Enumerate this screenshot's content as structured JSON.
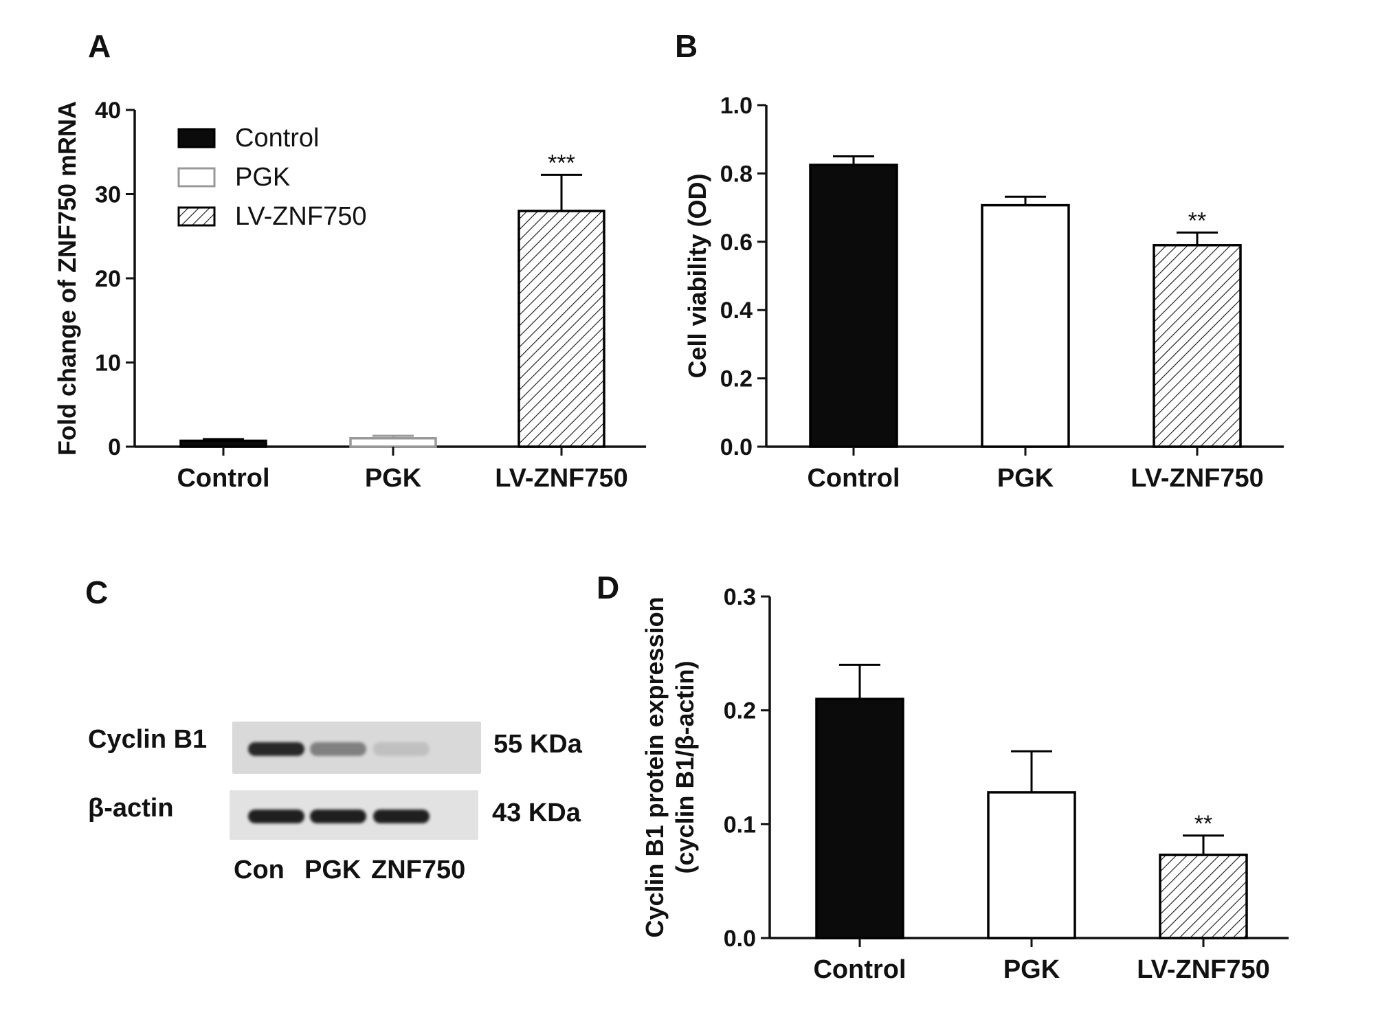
{
  "panels": {
    "a": {
      "letter": "A"
    },
    "b": {
      "letter": "B"
    },
    "c": {
      "letter": "C"
    },
    "d": {
      "letter": "D"
    }
  },
  "chart_data": [
    {
      "panel": "A",
      "type": "bar",
      "categories": [
        "Control",
        "PGK",
        "LV-ZNF750"
      ],
      "values": [
        0.7,
        1.0,
        28.0
      ],
      "errors": [
        0.2,
        0.3,
        4.3
      ],
      "significance": [
        "",
        "",
        "***"
      ],
      "fills": [
        "black",
        "white",
        "hatched"
      ],
      "edge_colors": [
        "#000000",
        "#999999",
        "#000000"
      ],
      "ylabel": "Fold change of ZNF750 mRNA",
      "ylim": [
        0,
        40
      ],
      "yticks": [
        0,
        10,
        20,
        30,
        40
      ],
      "legend": {
        "position": "top-left",
        "entries": [
          "Control",
          "PGK",
          "LV-ZNF750"
        ]
      }
    },
    {
      "panel": "B",
      "type": "bar",
      "categories": [
        "Control",
        "PGK",
        "LV-ZNF750"
      ],
      "values": [
        0.825,
        0.707,
        0.59
      ],
      "errors": [
        0.025,
        0.025,
        0.037
      ],
      "significance": [
        "",
        "",
        "**"
      ],
      "fills": [
        "black",
        "white",
        "hatched"
      ],
      "ylabel": "Cell viability (OD)",
      "ylim": [
        0,
        1.0
      ],
      "yticks": [
        "0.0",
        "0.2",
        "0.4",
        "0.6",
        "0.8",
        "1.0"
      ]
    },
    {
      "panel": "D",
      "type": "bar",
      "categories": [
        "Control",
        "PGK",
        "LV-ZNF750"
      ],
      "values": [
        0.21,
        0.128,
        0.073
      ],
      "errors": [
        0.03,
        0.036,
        0.017
      ],
      "significance": [
        "",
        "",
        "**"
      ],
      "fills": [
        "black",
        "white",
        "hatched"
      ],
      "ylabel_lines": [
        "Cyclin B1 protein expression",
        "(cyclin B1/β-actin)"
      ],
      "ylim": [
        0,
        0.3
      ],
      "yticks": [
        "0.0",
        "0.1",
        "0.2",
        "0.3"
      ]
    }
  ],
  "western_blot": {
    "rows": [
      {
        "label": "Cyclin B1",
        "size": "55 KDa",
        "intensities": [
          0.9,
          0.45,
          0.12
        ]
      },
      {
        "label": "β-actin",
        "size": "43 KDa",
        "intensities": [
          0.95,
          0.95,
          0.95
        ]
      }
    ],
    "lanes": [
      "Con",
      "PGK",
      "ZNF750"
    ]
  }
}
